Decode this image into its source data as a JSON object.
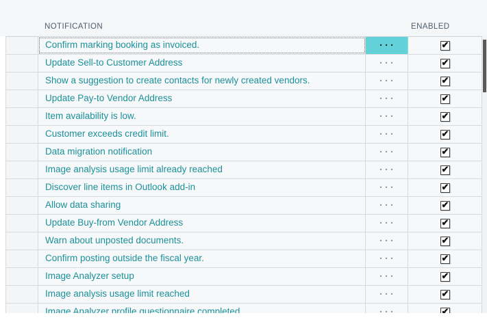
{
  "table": {
    "columns": {
      "notification": "NOTIFICATION",
      "enabled": "ENABLED"
    },
    "ellipsis_label": "···",
    "rows": [
      {
        "label": "Confirm marking booking as invoiced.",
        "enabled": true,
        "selected": true
      },
      {
        "label": "Update Sell-to Customer Address",
        "enabled": true,
        "selected": false
      },
      {
        "label": "Show a suggestion to create contacts for newly created vendors.",
        "enabled": true,
        "selected": false
      },
      {
        "label": "Update Pay-to Vendor Address",
        "enabled": true,
        "selected": false
      },
      {
        "label": "Item availability is low.",
        "enabled": true,
        "selected": false
      },
      {
        "label": "Customer exceeds credit limit.",
        "enabled": true,
        "selected": false
      },
      {
        "label": "Data migration notification",
        "enabled": true,
        "selected": false
      },
      {
        "label": "Image analysis usage limit already reached",
        "enabled": true,
        "selected": false
      },
      {
        "label": "Discover line items in Outlook add-in",
        "enabled": true,
        "selected": false
      },
      {
        "label": "Allow data sharing",
        "enabled": true,
        "selected": false
      },
      {
        "label": "Update Buy-from Vendor Address",
        "enabled": true,
        "selected": false
      },
      {
        "label": "Warn about unposted documents.",
        "enabled": true,
        "selected": false
      },
      {
        "label": "Confirm posting outside the fiscal year.",
        "enabled": true,
        "selected": false
      },
      {
        "label": "Image Analyzer setup",
        "enabled": true,
        "selected": false
      },
      {
        "label": "Image analysis usage limit reached",
        "enabled": true,
        "selected": false
      },
      {
        "label": "Image Analyzer profile questionnaire completed",
        "enabled": true,
        "selected": false
      }
    ]
  },
  "colors": {
    "link_teal": "#1a909a",
    "selected_cell_bg": "#63d1d8",
    "header_text": "#4b5e70",
    "row_border": "#d6dade",
    "header_bg": "#f5f6f8",
    "scrollbar_thumb": "#595959"
  }
}
